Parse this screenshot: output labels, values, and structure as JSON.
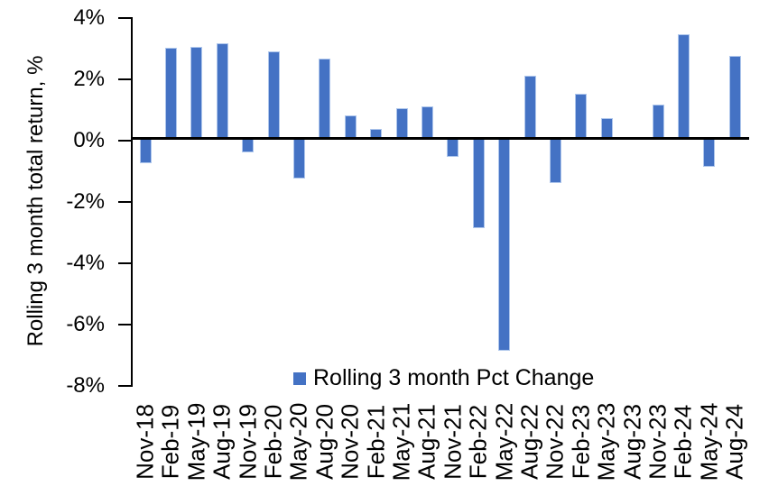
{
  "chart_data": {
    "type": "bar",
    "title": "",
    "xlabel": "",
    "ylabel": "Rolling 3 month total return, %",
    "categories": [
      "Nov-18",
      "Feb-19",
      "May-19",
      "Aug-19",
      "Nov-19",
      "Feb-20",
      "May-20",
      "Aug-20",
      "Nov-20",
      "Feb-21",
      "May-21",
      "Aug-21",
      "Nov-21",
      "Feb-22",
      "May-22",
      "Aug-22",
      "Nov-22",
      "Feb-23",
      "May-23",
      "Aug-23",
      "Nov-23",
      "Feb-24",
      "May-24",
      "Aug-24"
    ],
    "values": [
      -0.8,
      2.95,
      3.0,
      3.1,
      -0.45,
      2.85,
      -1.3,
      2.6,
      0.75,
      0.3,
      1.0,
      1.05,
      -0.6,
      -2.9,
      -6.9,
      2.05,
      -1.45,
      1.45,
      0.65,
      0.0,
      1.1,
      3.4,
      -0.9,
      2.7
    ],
    "series_name": "Rolling 3 month Pct Change",
    "ylim": [
      -8,
      4
    ],
    "ytick_step": 2,
    "ytick_labels": [
      "4%",
      "2%",
      "0%",
      "-2%",
      "-4%",
      "-6%",
      "-8%"
    ],
    "grid": "off",
    "legend_position": "bottom-center",
    "bar_color": "#4472C4",
    "bar_edge_color": "#AEC6EC",
    "axis_color": "#000000"
  },
  "legend": {
    "label": "Rolling 3 month Pct Change",
    "swatch_color": "#4472C4"
  },
  "y_axis": {
    "title": "Rolling 3 month total return, %"
  }
}
